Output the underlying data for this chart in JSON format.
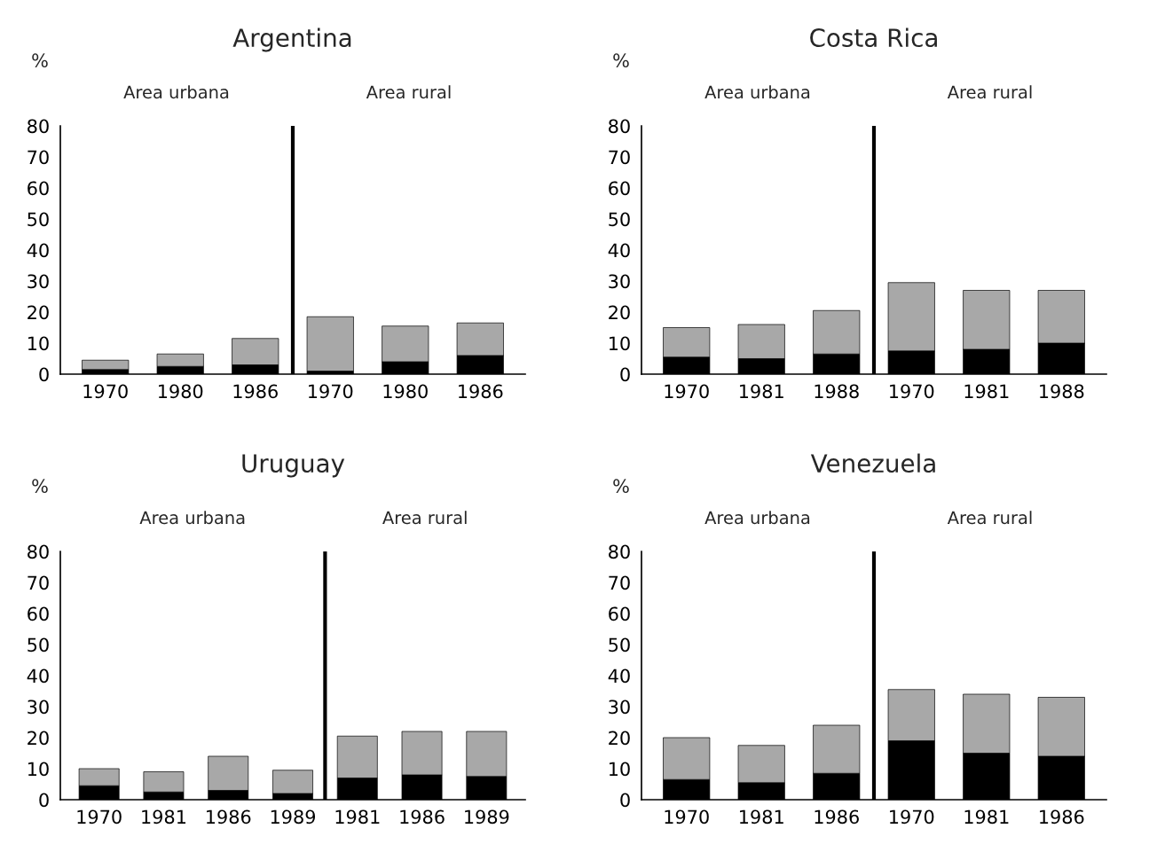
{
  "chart_data": [
    {
      "type": "bar",
      "title": "Argentina",
      "ylabel": "%",
      "stacked": true,
      "categories": [
        "1970",
        "1980",
        "1986",
        "1970",
        "1980",
        "1986"
      ],
      "series": [
        {
          "color": "#000000",
          "values": [
            1.5,
            2.5,
            3,
            1,
            4,
            6
          ]
        },
        {
          "color": "#a8a8a8",
          "values": [
            3,
            4,
            8.5,
            17.5,
            11.5,
            10.5
          ]
        }
      ],
      "ylim": [
        0,
        80
      ],
      "yticks": [
        0,
        10,
        20,
        30,
        40,
        50,
        60,
        70,
        80
      ],
      "grid": false,
      "annotations": [
        "Area urbana",
        "Area rural"
      ]
    },
    {
      "type": "bar",
      "title": "Costa Rica",
      "ylabel": "%",
      "stacked": true,
      "categories": [
        "1970",
        "1981",
        "1988",
        "1970",
        "1981",
        "1988"
      ],
      "series": [
        {
          "color": "#000000",
          "values": [
            5.5,
            5,
            6.5,
            7.5,
            8,
            10
          ]
        },
        {
          "color": "#a8a8a8",
          "values": [
            9.5,
            11,
            14,
            22,
            19,
            17
          ]
        }
      ],
      "ylim": [
        0,
        80
      ],
      "yticks": [
        0,
        10,
        20,
        30,
        40,
        50,
        60,
        70,
        80
      ],
      "grid": false,
      "annotations": [
        "Area urbana",
        "Area rural"
      ]
    },
    {
      "type": "bar",
      "title": "Uruguay",
      "ylabel": "%",
      "stacked": true,
      "categories": [
        "1970",
        "1981",
        "1986",
        "1989",
        "1981",
        "1986",
        "1989"
      ],
      "series": [
        {
          "color": "#000000",
          "values": [
            4.5,
            2.5,
            3,
            2,
            7,
            8,
            7.5
          ]
        },
        {
          "color": "#a8a8a8",
          "values": [
            5.5,
            6.5,
            11,
            7.5,
            13.5,
            14,
            14.5
          ]
        }
      ],
      "ylim": [
        0,
        80
      ],
      "yticks": [
        0,
        10,
        20,
        30,
        40,
        50,
        60,
        70,
        80
      ],
      "grid": false,
      "annotations": [
        "Area urbana",
        "Area rural"
      ]
    },
    {
      "type": "bar",
      "title": "Venezuela",
      "ylabel": "%",
      "stacked": true,
      "categories": [
        "1970",
        "1981",
        "1986",
        "1970",
        "1981",
        "1986"
      ],
      "series": [
        {
          "color": "#000000",
          "values": [
            6.5,
            5.5,
            8.5,
            19,
            15,
            14
          ]
        },
        {
          "color": "#a8a8a8",
          "values": [
            13.5,
            12,
            15.5,
            16.5,
            19,
            19
          ]
        }
      ],
      "ylim": [
        0,
        80
      ],
      "yticks": [
        0,
        10,
        20,
        30,
        40,
        50,
        60,
        70,
        80
      ],
      "grid": false,
      "annotations": [
        "Area urbana",
        "Area rural"
      ]
    }
  ]
}
